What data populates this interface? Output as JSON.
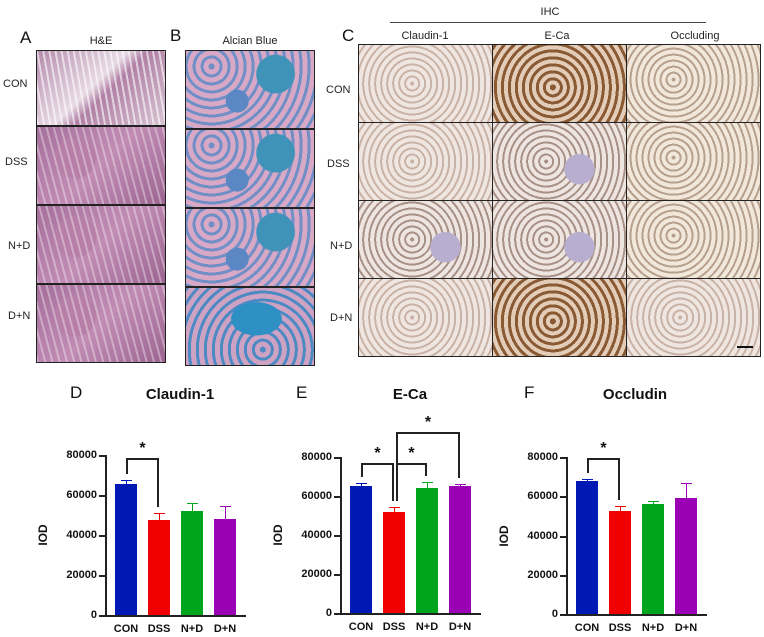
{
  "panels": {
    "A": {
      "letter": "A",
      "title": "H&E"
    },
    "B": {
      "letter": "B",
      "title": "Alcian Blue"
    },
    "C": {
      "letter": "C",
      "group_title": "IHC",
      "columns": [
        "Claudin-1",
        "E-Ca",
        "Occluding"
      ]
    },
    "D": {
      "letter": "D"
    },
    "E": {
      "letter": "E"
    },
    "F": {
      "letter": "F"
    }
  },
  "row_labels": [
    "CON",
    "DSS",
    "N+D",
    "D+N"
  ],
  "colors": {
    "CON": "#0019b4",
    "DSS": "#f00000",
    "N+D": "#00a51e",
    "D+N": "#9a00b4"
  },
  "chart_data": [
    {
      "type": "bar",
      "panel": "D",
      "title": "Claudin-1",
      "xlabel": "",
      "ylabel": "IOD",
      "ylim": [
        0,
        80000
      ],
      "yticks": [
        "0",
        "20000",
        "40000",
        "60000",
        "80000"
      ],
      "categories": [
        "CON",
        "DSS",
        "N+D",
        "D+N"
      ],
      "values": [
        65500,
        47500,
        52000,
        48000
      ],
      "error_upper": [
        67500,
        50800,
        56000,
        54500
      ],
      "significance": [
        {
          "from": "CON",
          "to": "DSS",
          "label": "*"
        }
      ],
      "grid": false
    },
    {
      "type": "bar",
      "panel": "E",
      "title": "E-Ca",
      "xlabel": "",
      "ylabel": "IOD",
      "ylim": [
        0,
        80000
      ],
      "yticks": [
        "0",
        "20000",
        "40000",
        "60000",
        "80000"
      ],
      "categories": [
        "CON",
        "DSS",
        "N+D",
        "D+N"
      ],
      "values": [
        65000,
        52000,
        64000,
        65000
      ],
      "error_upper": [
        66500,
        54500,
        67000,
        66000
      ],
      "significance": [
        {
          "from": "CON",
          "to": "DSS",
          "label": "*"
        },
        {
          "from": "DSS",
          "to": "N+D",
          "label": "*"
        },
        {
          "from": "DSS",
          "to": "D+N",
          "label": "*"
        }
      ],
      "grid": false
    },
    {
      "type": "bar",
      "panel": "F",
      "title": "Occludin",
      "xlabel": "",
      "ylabel": "IOD",
      "ylim": [
        0,
        80000
      ],
      "yticks": [
        "0",
        "20000",
        "40000",
        "60000",
        "80000"
      ],
      "categories": [
        "CON",
        "DSS",
        "N+D",
        "D+N"
      ],
      "values": [
        68000,
        52500,
        56000,
        59000
      ],
      "error_upper": [
        69000,
        54800,
        57500,
        66500
      ],
      "significance": [
        {
          "from": "CON",
          "to": "DSS",
          "label": "*"
        }
      ],
      "grid": false
    }
  ]
}
